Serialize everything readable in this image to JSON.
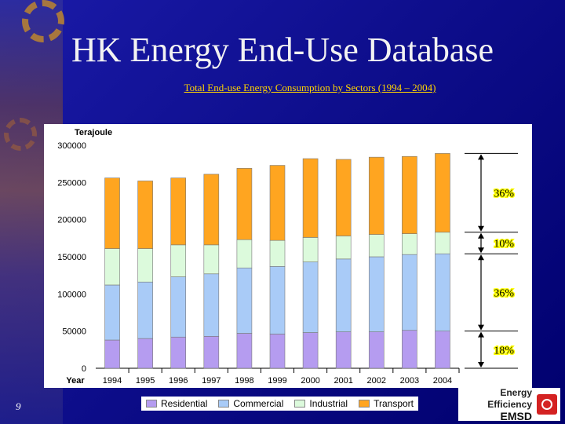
{
  "slide": {
    "title": "HK Energy End-Use Database",
    "subtitle": "Total End-use Energy Consumption by Sectors (1994 – 2004)",
    "page_number": "9",
    "logo": {
      "line1": "Energy Efficiency",
      "line2": "EMSD",
      "icon": "emsd-logo-icon"
    }
  },
  "chart_data": {
    "type": "bar",
    "stacked": true,
    "ylabel": "Terajoule",
    "xlabel": "Year",
    "ylim": [
      0,
      300000
    ],
    "yticks": [
      0,
      50000,
      100000,
      150000,
      200000,
      250000,
      300000
    ],
    "ytick_labels": [
      "0",
      "50000",
      "100000",
      "150000",
      "200000",
      "250000",
      "300000"
    ],
    "categories": [
      "1994",
      "1995",
      "1996",
      "1997",
      "1998",
      "1999",
      "2000",
      "2001",
      "2002",
      "2003",
      "2004"
    ],
    "series": [
      {
        "name": "Residential",
        "color": "#b59cf0",
        "values": [
          38000,
          40000,
          42000,
          43000,
          47000,
          46000,
          48000,
          49000,
          49000,
          51000,
          50000
        ]
      },
      {
        "name": "Commercial",
        "color": "#a9cbf7",
        "values": [
          74000,
          76000,
          81000,
          84000,
          88000,
          91000,
          95000,
          98000,
          101000,
          102000,
          104000
        ]
      },
      {
        "name": "Industrial",
        "color": "#dcfadc",
        "values": [
          49000,
          45000,
          43000,
          39000,
          38000,
          35000,
          33000,
          31000,
          30000,
          28000,
          29000
        ]
      },
      {
        "name": "Transport",
        "color": "#ffa520",
        "values": [
          95000,
          91000,
          90000,
          95000,
          96000,
          101000,
          106000,
          103000,
          104000,
          104000,
          106000
        ]
      }
    ],
    "legend_position": "bottom",
    "grid": false,
    "annotations": [
      "36%",
      "10%",
      "36%",
      "18%"
    ],
    "annotation_color": "#ffff00"
  }
}
